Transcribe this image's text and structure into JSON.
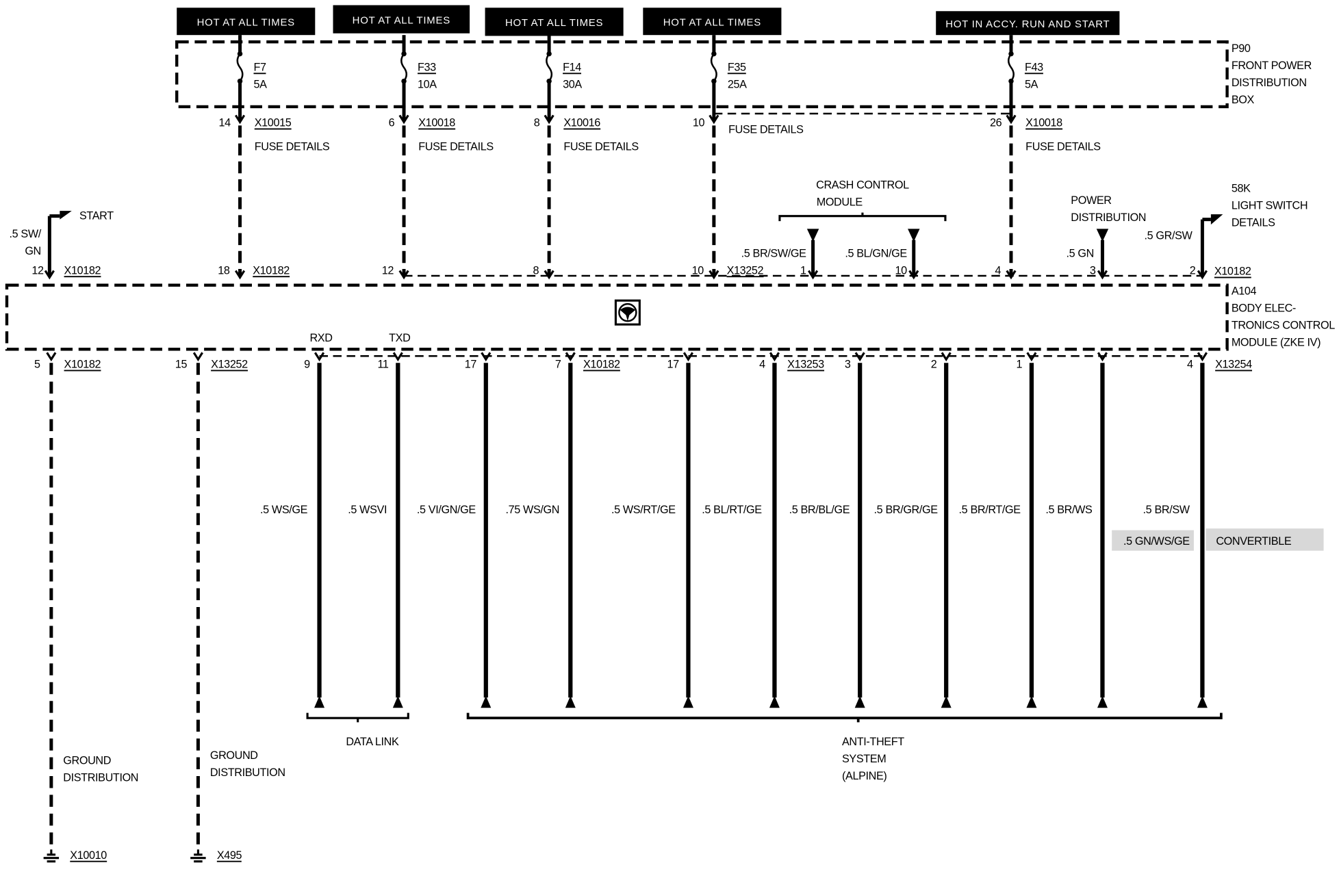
{
  "colors": {
    "ink": "#000000",
    "paper": "#ffffff",
    "shade": "#d8d8d8"
  },
  "banners": [
    "HOT AT ALL TIMES",
    "HOT AT ALL TIMES",
    "HOT AT ALL TIMES",
    "HOT AT ALL TIMES",
    "HOT IN  ACCY. RUN AND START"
  ],
  "fuse_box": {
    "lines": [
      "P90",
      "FRONT POWER",
      "DISTRIBUTION",
      "BOX"
    ]
  },
  "fuses": [
    {
      "id": "F7",
      "rating": "5A",
      "pin": "14",
      "connector": "X10015",
      "details": "FUSE DETAILS",
      "module_pin": "18",
      "module_connector": "X10182"
    },
    {
      "id": "F33",
      "rating": "10A",
      "pin": "6",
      "connector": "X10018",
      "details": "FUSE DETAILS",
      "module_pin": "12",
      "module_connector": ""
    },
    {
      "id": "F14",
      "rating": "30A",
      "pin": "8",
      "connector": "X10016",
      "details": "FUSE DETAILS",
      "module_pin": "8",
      "module_connector": ""
    },
    {
      "id": "F35",
      "rating": "25A",
      "pin": "10",
      "connector": "",
      "details": "FUSE DETAILS",
      "module_pin": "10",
      "module_connector": "X13252"
    },
    {
      "id": "F43",
      "rating": "5A",
      "pin": "26",
      "connector": "X10018",
      "details": "FUSE DETAILS",
      "module_pin": "4",
      "module_connector": ""
    }
  ],
  "start_input": {
    "label": "START",
    "wire": [
      ".5 SW/",
      "GN"
    ],
    "pin": "12",
    "connector": "X10182"
  },
  "crash_module": {
    "lines": [
      "CRASH CONTROL",
      "MODULE"
    ],
    "wires": [
      {
        "wire": ".5 BR/SW/GE",
        "pin": "1"
      },
      {
        "wire": ".5 BL/GN/GE",
        "pin": "10"
      }
    ]
  },
  "power_distribution": {
    "lines": [
      "POWER",
      "DISTRIBUTION"
    ],
    "wire": ".5 GN",
    "pin": "3"
  },
  "light_switch": {
    "lines": [
      "58K",
      "LIGHT SWITCH",
      "DETAILS"
    ],
    "wire": ".5 GR/SW",
    "pin": "2",
    "connector": "X10182"
  },
  "module": {
    "lines": [
      "A104",
      "BODY ELEC-",
      "TRONICS CONTROL",
      "MODULE (ZKE IV)"
    ],
    "icon": "steering-wheel-icon"
  },
  "grounds": [
    {
      "pin": "5",
      "connector": "X10182",
      "lines": [
        "GROUND",
        "DISTRIBUTION"
      ],
      "ground": "X10010"
    },
    {
      "pin": "15",
      "connector": "X13252",
      "lines": [
        "GROUND",
        "DISTRIBUTION"
      ],
      "ground": "X495"
    }
  ],
  "bottom_wires": [
    {
      "pin": "9",
      "signal": "RXD",
      "connector": "",
      "wire": ".5 WS/GE"
    },
    {
      "pin": "11",
      "signal": "TXD",
      "connector": "",
      "wire": ".5 WSVI"
    },
    {
      "pin": "17",
      "signal": "",
      "connector": "",
      "wire": ".5 VI/GN/GE"
    },
    {
      "pin": "7",
      "signal": "",
      "connector": "X10182",
      "wire": ".75 WS/GN"
    },
    {
      "pin": "17",
      "signal": "",
      "connector": "",
      "wire": ".5 WS/RT/GE"
    },
    {
      "pin": "4",
      "signal": "",
      "connector": "X13253",
      "wire": ".5 BL/RT/GE"
    },
    {
      "pin": "3",
      "signal": "",
      "connector": "",
      "wire": ".5 BR/BL/GE"
    },
    {
      "pin": "2",
      "signal": "",
      "connector": "",
      "wire": ".5 BR/GR/GE"
    },
    {
      "pin": "1",
      "signal": "",
      "connector": "",
      "wire": ".5 BR/RT/GE"
    },
    {
      "pin": "",
      "signal": "",
      "connector": "",
      "wire": ".5 BR/WS"
    },
    {
      "pin": "4",
      "signal": "",
      "connector": "X13254",
      "wire": ".5 BR/SW"
    }
  ],
  "convertible_note": {
    "wire": ".5 GN/WS/GE",
    "label": "CONVERTIBLE"
  },
  "groups": {
    "data_link": [
      "DATA LINK"
    ],
    "anti_theft": [
      "ANTI-THEFT",
      "SYSTEM",
      "(ALPINE)"
    ]
  }
}
